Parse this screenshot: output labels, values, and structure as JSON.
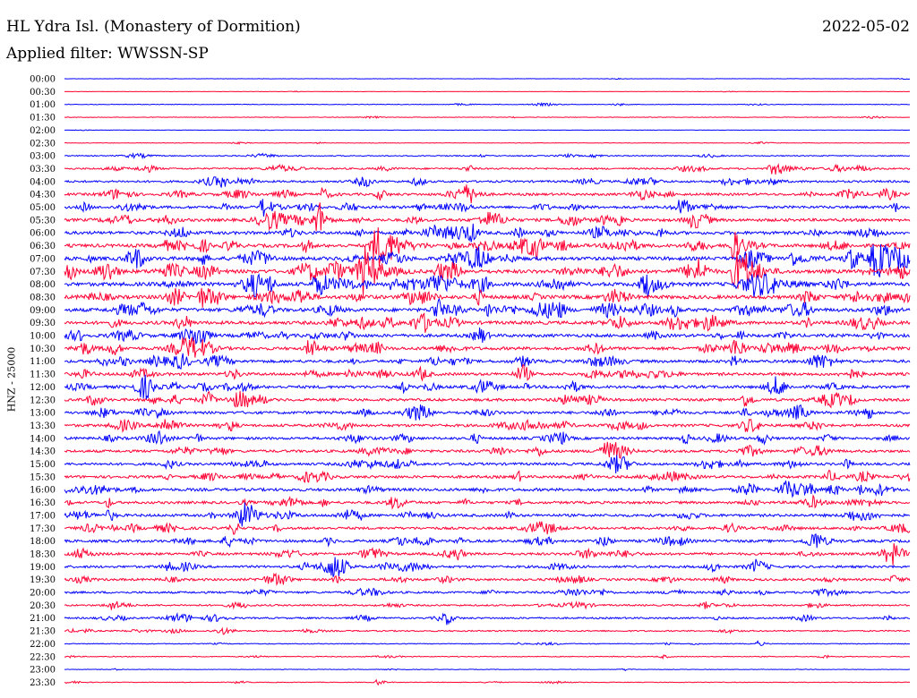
{
  "header": {
    "title": "HL Ydra Isl. (Monastery of Dormition)",
    "date": "2022-05-02",
    "filter": "Applied filter: WWSSN-SP"
  },
  "channel_label": "HNZ - 25000",
  "colors": {
    "blue": "#0000ff",
    "red": "#ff0033"
  },
  "chart_data": {
    "type": "line",
    "title": "HL Ydra Isl. (Monastery of Dormition)",
    "subtitle": "Applied filter: WWSSN-SP",
    "ylabel": "HNZ - 25000",
    "xlabel": "",
    "grid": false,
    "legend": "none",
    "row_labels": [
      "00:00",
      "00:30",
      "01:00",
      "01:30",
      "02:00",
      "02:30",
      "03:00",
      "03:30",
      "04:00",
      "04:30",
      "05:00",
      "05:30",
      "06:00",
      "06:30",
      "07:00",
      "07:30",
      "08:00",
      "08:30",
      "09:00",
      "09:30",
      "10:00",
      "10:30",
      "11:00",
      "11:30",
      "12:00",
      "12:30",
      "13:00",
      "13:30",
      "14:00",
      "14:30",
      "15:00",
      "15:30",
      "16:00",
      "16:30",
      "17:00",
      "17:30",
      "18:00",
      "18:30",
      "19:00",
      "19:30",
      "20:00",
      "20:30",
      "21:00",
      "21:30",
      "22:00",
      "22:30",
      "23:00",
      "23:30"
    ],
    "row_colors": [
      "blue",
      "red",
      "blue",
      "red",
      "blue",
      "red",
      "blue",
      "red",
      "blue",
      "red",
      "blue",
      "red",
      "blue",
      "red",
      "blue",
      "red",
      "blue",
      "red",
      "blue",
      "red",
      "blue",
      "red",
      "blue",
      "red",
      "blue",
      "red",
      "blue",
      "red",
      "blue",
      "red",
      "blue",
      "red",
      "blue",
      "red",
      "blue",
      "red",
      "blue",
      "red",
      "blue",
      "red",
      "blue",
      "red",
      "blue",
      "red",
      "blue",
      "red",
      "blue",
      "red"
    ],
    "noise_level": [
      0.3,
      0.3,
      0.6,
      0.5,
      0.3,
      0.5,
      1.0,
      1.6,
      2.0,
      2.4,
      2.6,
      2.8,
      3.0,
      3.2,
      3.4,
      3.6,
      3.6,
      3.4,
      3.4,
      3.2,
      3.0,
      3.0,
      2.8,
      2.8,
      2.8,
      2.6,
      2.6,
      2.6,
      2.5,
      2.5,
      2.5,
      2.6,
      2.8,
      2.5,
      2.6,
      2.4,
      2.6,
      2.4,
      2.3,
      2.2,
      2.0,
      1.6,
      1.6,
      1.3,
      0.8,
      0.8,
      0.5,
      0.6
    ],
    "events": [
      {
        "row": 9,
        "t": 0.305,
        "amp": 8,
        "width": 0.004
      },
      {
        "row": 10,
        "t": 0.235,
        "amp": 12,
        "width": 0.006
      },
      {
        "row": 11,
        "t": 0.3,
        "amp": 22,
        "width": 0.004
      },
      {
        "row": 13,
        "t": 0.37,
        "amp": 24,
        "width": 0.012
      },
      {
        "row": 13,
        "t": 0.79,
        "amp": 18,
        "width": 0.008
      },
      {
        "row": 14,
        "t": 0.86,
        "amp": 8,
        "width": 0.01
      },
      {
        "row": 14,
        "t": 0.96,
        "amp": 20,
        "width": 0.012
      },
      {
        "row": 15,
        "t": 0.355,
        "amp": 26,
        "width": 0.01
      },
      {
        "row": 15,
        "t": 0.795,
        "amp": 22,
        "width": 0.01
      },
      {
        "row": 16,
        "t": 0.3,
        "amp": 14,
        "width": 0.01
      },
      {
        "row": 16,
        "t": 0.815,
        "amp": 10,
        "width": 0.008
      },
      {
        "row": 18,
        "t": 0.44,
        "amp": 8,
        "width": 0.008
      },
      {
        "row": 18,
        "t": 0.5,
        "amp": 10,
        "width": 0.004
      },
      {
        "row": 7,
        "t": 0.84,
        "amp": 8,
        "width": 0.01
      },
      {
        "row": 8,
        "t": 0.835,
        "amp": 7,
        "width": 0.004
      },
      {
        "row": 21,
        "t": 0.29,
        "amp": 7,
        "width": 0.006
      },
      {
        "row": 23,
        "t": 0.335,
        "amp": 7,
        "width": 0.005
      },
      {
        "row": 26,
        "t": 0.11,
        "amp": 7,
        "width": 0.004
      },
      {
        "row": 32,
        "t": 0.73,
        "amp": 6,
        "width": 0.005
      },
      {
        "row": 39,
        "t": 0.98,
        "amp": 6,
        "width": 0.004
      },
      {
        "row": 42,
        "t": 0.45,
        "amp": 5,
        "width": 0.004
      },
      {
        "row": 44,
        "t": 0.82,
        "amp": 4,
        "width": 0.003
      },
      {
        "row": 47,
        "t": 0.37,
        "amp": 4,
        "width": 0.004
      }
    ]
  }
}
